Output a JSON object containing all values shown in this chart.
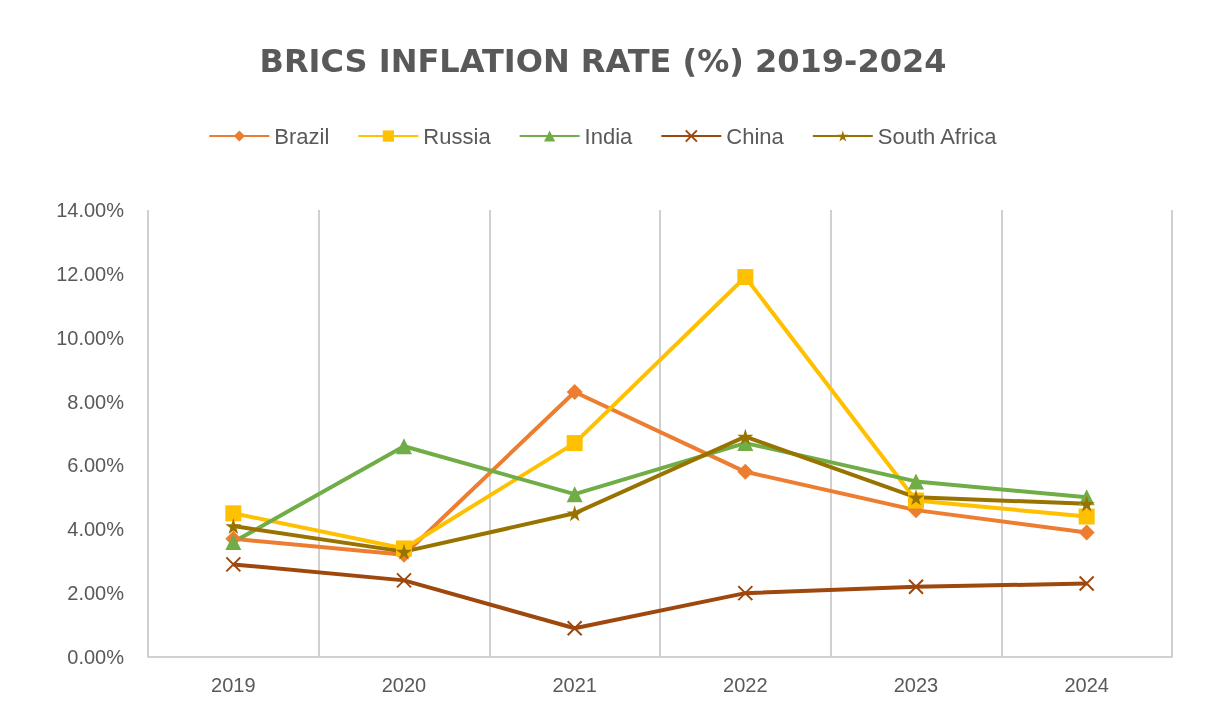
{
  "chart_data": {
    "type": "line",
    "title": "BRICS INFLATION RATE (%) 2019-2024",
    "categories": [
      "2019",
      "2020",
      "2021",
      "2022",
      "2023",
      "2024"
    ],
    "series": [
      {
        "name": "Brazil",
        "color": "#ed7d31",
        "marker": "diamond",
        "values": [
          3.7,
          3.2,
          8.3,
          5.8,
          4.6,
          3.9
        ]
      },
      {
        "name": "Russia",
        "color": "#ffc000",
        "marker": "square",
        "values": [
          4.5,
          3.4,
          6.7,
          11.9,
          4.9,
          4.4
        ]
      },
      {
        "name": "India",
        "color": "#70ad47",
        "marker": "triangle",
        "values": [
          3.6,
          6.6,
          5.1,
          6.7,
          5.5,
          5.0
        ]
      },
      {
        "name": "China",
        "color": "#9e480e",
        "marker": "cross",
        "values": [
          2.9,
          2.4,
          0.9,
          2.0,
          2.2,
          2.3
        ]
      },
      {
        "name": "South Africa",
        "color": "#997300",
        "marker": "star",
        "values": [
          4.1,
          3.3,
          4.5,
          6.9,
          5.0,
          4.8
        ]
      }
    ],
    "ylim": [
      0,
      14
    ],
    "yticks": [
      {
        "value": 0,
        "label": "0.00%"
      },
      {
        "value": 2,
        "label": "2.00%"
      },
      {
        "value": 4,
        "label": "4.00%"
      },
      {
        "value": 6,
        "label": "6.00%"
      },
      {
        "value": 8,
        "label": "8.00%"
      },
      {
        "value": 10,
        "label": "10.00%"
      },
      {
        "value": 12,
        "label": "12.00%"
      },
      {
        "value": 14,
        "label": "14.00%"
      }
    ],
    "grid": "x",
    "legend": "top"
  }
}
